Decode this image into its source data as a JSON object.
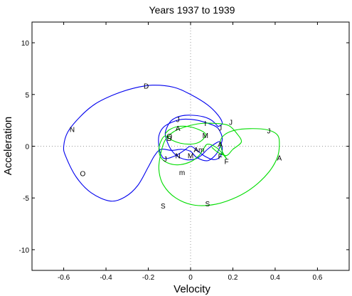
{
  "chart_data": {
    "type": "line",
    "title": "Years 1937 to 1939",
    "xlabel": "Velocity",
    "ylabel": "Acceleration",
    "xlim": [
      -0.75,
      0.75
    ],
    "ylim": [
      -12,
      12
    ],
    "xticks": [
      -0.6,
      -0.4,
      -0.2,
      0,
      0.2,
      0.4,
      0.6
    ],
    "xtick_labels": [
      "-0.6",
      "-0.4",
      "-0.2",
      "0",
      "0.2",
      "0.4",
      "0.6"
    ],
    "yticks": [
      -10,
      -5,
      0,
      5,
      10
    ],
    "ytick_labels": [
      "-10",
      "-5",
      "0",
      "5",
      "10"
    ],
    "zero_lines": true,
    "grid": false,
    "series": [
      {
        "color": "#0000ee",
        "points": [
          [
            0.13,
            1.9
          ],
          [
            0.1,
            2.5
          ],
          [
            0.06,
            2.85
          ],
          [
            0.0,
            3.0
          ],
          [
            -0.05,
            2.9
          ],
          [
            -0.09,
            2.5
          ],
          [
            -0.11,
            1.9
          ],
          [
            -0.12,
            1.2
          ],
          [
            -0.11,
            0.4
          ],
          [
            -0.09,
            -0.4
          ],
          [
            -0.06,
            -1.0
          ],
          [
            -0.02,
            -1.3
          ],
          [
            0.02,
            -1.25
          ],
          [
            0.05,
            -0.9
          ],
          [
            0.08,
            -0.3
          ],
          [
            0.12,
            0.3
          ],
          [
            0.14,
            0.4
          ],
          [
            0.15,
            -0.3
          ],
          [
            0.14,
            -1.0
          ],
          [
            0.11,
            -1.3
          ],
          [
            0.07,
            -1.0
          ],
          [
            0.03,
            -0.4
          ],
          [
            0.0,
            0.0
          ],
          [
            -0.03,
            -0.4
          ],
          [
            -0.07,
            -0.9
          ],
          [
            -0.12,
            -1.2
          ],
          [
            -0.14,
            -0.8
          ],
          [
            -0.15,
            0.0
          ],
          [
            -0.15,
            1.0
          ],
          [
            -0.13,
            1.8
          ],
          [
            -0.09,
            2.3
          ],
          [
            -0.04,
            2.6
          ],
          [
            0.02,
            2.55
          ],
          [
            0.07,
            2.3
          ],
          [
            0.12,
            1.9
          ],
          [
            0.14,
            1.4
          ],
          [
            0.15,
            0.7
          ],
          [
            0.14,
            0.0
          ],
          [
            0.12,
            -0.8
          ],
          [
            0.08,
            -1.4
          ],
          [
            0.03,
            -1.1
          ],
          [
            0.0,
            -0.5
          ],
          [
            -0.04,
            -0.3
          ],
          [
            -0.09,
            -0.4
          ],
          [
            -0.14,
            -0.3
          ],
          [
            -0.17,
            -0.9
          ],
          [
            -0.2,
            -2.0
          ],
          [
            -0.25,
            -3.8
          ],
          [
            -0.31,
            -4.9
          ],
          [
            -0.38,
            -5.3
          ],
          [
            -0.47,
            -4.5
          ],
          [
            -0.54,
            -3.0
          ],
          [
            -0.59,
            -1.0
          ],
          [
            -0.6,
            0.0
          ],
          [
            -0.58,
            1.4
          ],
          [
            -0.52,
            2.9
          ],
          [
            -0.45,
            4.1
          ],
          [
            -0.36,
            5.0
          ],
          [
            -0.27,
            5.6
          ],
          [
            -0.18,
            5.9
          ],
          [
            -0.08,
            5.7
          ],
          [
            0.0,
            5.0
          ],
          [
            0.08,
            4.0
          ],
          [
            0.13,
            3.0
          ],
          [
            0.15,
            2.2
          ],
          [
            0.13,
            1.9
          ]
        ]
      },
      {
        "color": "#00dd00",
        "points": [
          [
            -0.12,
            1.2
          ],
          [
            -0.1,
            1.6
          ],
          [
            -0.06,
            1.9
          ],
          [
            -0.01,
            1.9
          ],
          [
            0.04,
            1.6
          ],
          [
            0.07,
            1.2
          ],
          [
            0.06,
            0.7
          ],
          [
            0.03,
            0.3
          ],
          [
            -0.01,
            0.2
          ],
          [
            -0.05,
            0.3
          ],
          [
            -0.09,
            0.6
          ],
          [
            -0.12,
            1.0
          ],
          [
            -0.14,
            0.5
          ],
          [
            -0.15,
            -0.3
          ],
          [
            -0.14,
            -1.1
          ],
          [
            -0.11,
            -1.6
          ],
          [
            -0.06,
            -1.8
          ],
          [
            0.0,
            -1.5
          ],
          [
            0.04,
            -0.9
          ],
          [
            0.06,
            -0.3
          ],
          [
            0.08,
            0.2
          ],
          [
            0.12,
            -0.1
          ],
          [
            0.15,
            -0.7
          ],
          [
            0.17,
            -1.2
          ],
          [
            0.15,
            -0.5
          ],
          [
            0.14,
            0.4
          ],
          [
            0.16,
            1.1
          ],
          [
            0.21,
            1.55
          ],
          [
            0.28,
            1.7
          ],
          [
            0.36,
            1.6
          ],
          [
            0.41,
            1.1
          ],
          [
            0.42,
            0.2
          ],
          [
            0.41,
            -1.1
          ],
          [
            0.37,
            -2.5
          ],
          [
            0.3,
            -3.9
          ],
          [
            0.22,
            -4.9
          ],
          [
            0.12,
            -5.6
          ],
          [
            0.02,
            -5.7
          ],
          [
            -0.07,
            -5.0
          ],
          [
            -0.13,
            -3.7
          ],
          [
            -0.15,
            -2.2
          ],
          [
            -0.14,
            -0.6
          ],
          [
            -0.12,
            0.6
          ],
          [
            -0.08,
            1.4
          ],
          [
            -0.02,
            1.9
          ],
          [
            0.05,
            2.2
          ],
          [
            0.12,
            2.2
          ],
          [
            0.18,
            2.0
          ],
          [
            0.22,
            1.2
          ],
          [
            0.24,
            0.4
          ],
          [
            0.2,
            -0.3
          ],
          [
            0.17,
            -0.9
          ],
          [
            0.13,
            -0.6
          ],
          [
            0.1,
            -0.1
          ]
        ]
      }
    ],
    "annotations": [
      {
        "text": "D",
        "x": -0.21,
        "y": 5.85
      },
      {
        "text": "N",
        "x": -0.56,
        "y": 1.65
      },
      {
        "text": "O",
        "x": -0.51,
        "y": -2.6
      },
      {
        "text": "S",
        "x": -0.13,
        "y": -5.75
      },
      {
        "text": "S",
        "x": 0.08,
        "y": -5.55
      },
      {
        "text": "J",
        "x": -0.06,
        "y": 2.6
      },
      {
        "text": "J",
        "x": 0.14,
        "y": 1.8
      },
      {
        "text": "J",
        "x": 0.19,
        "y": 2.35
      },
      {
        "text": "J",
        "x": 0.37,
        "y": 1.5
      },
      {
        "text": "J",
        "x": -0.12,
        "y": -1.2
      },
      {
        "text": "A",
        "x": -0.06,
        "y": 1.75
      },
      {
        "text": "A",
        "x": 0.14,
        "y": 0.2
      },
      {
        "text": "A",
        "x": 0.42,
        "y": -1.1
      },
      {
        "text": "M",
        "x": 0.07,
        "y": 1.05
      },
      {
        "text": "M",
        "x": 0.0,
        "y": -0.9
      },
      {
        "text": "I",
        "x": 0.07,
        "y": 2.25
      },
      {
        "text": "O",
        "x": -0.1,
        "y": 1.0
      },
      {
        "text": "D",
        "x": -0.1,
        "y": 0.8
      },
      {
        "text": "N",
        "x": -0.06,
        "y": -0.9
      },
      {
        "text": "Am",
        "x": 0.04,
        "y": -0.3
      },
      {
        "text": "F",
        "x": 0.14,
        "y": -0.95
      },
      {
        "text": "F",
        "x": 0.17,
        "y": -1.45
      },
      {
        "text": "m",
        "x": -0.04,
        "y": -2.5
      }
    ]
  }
}
